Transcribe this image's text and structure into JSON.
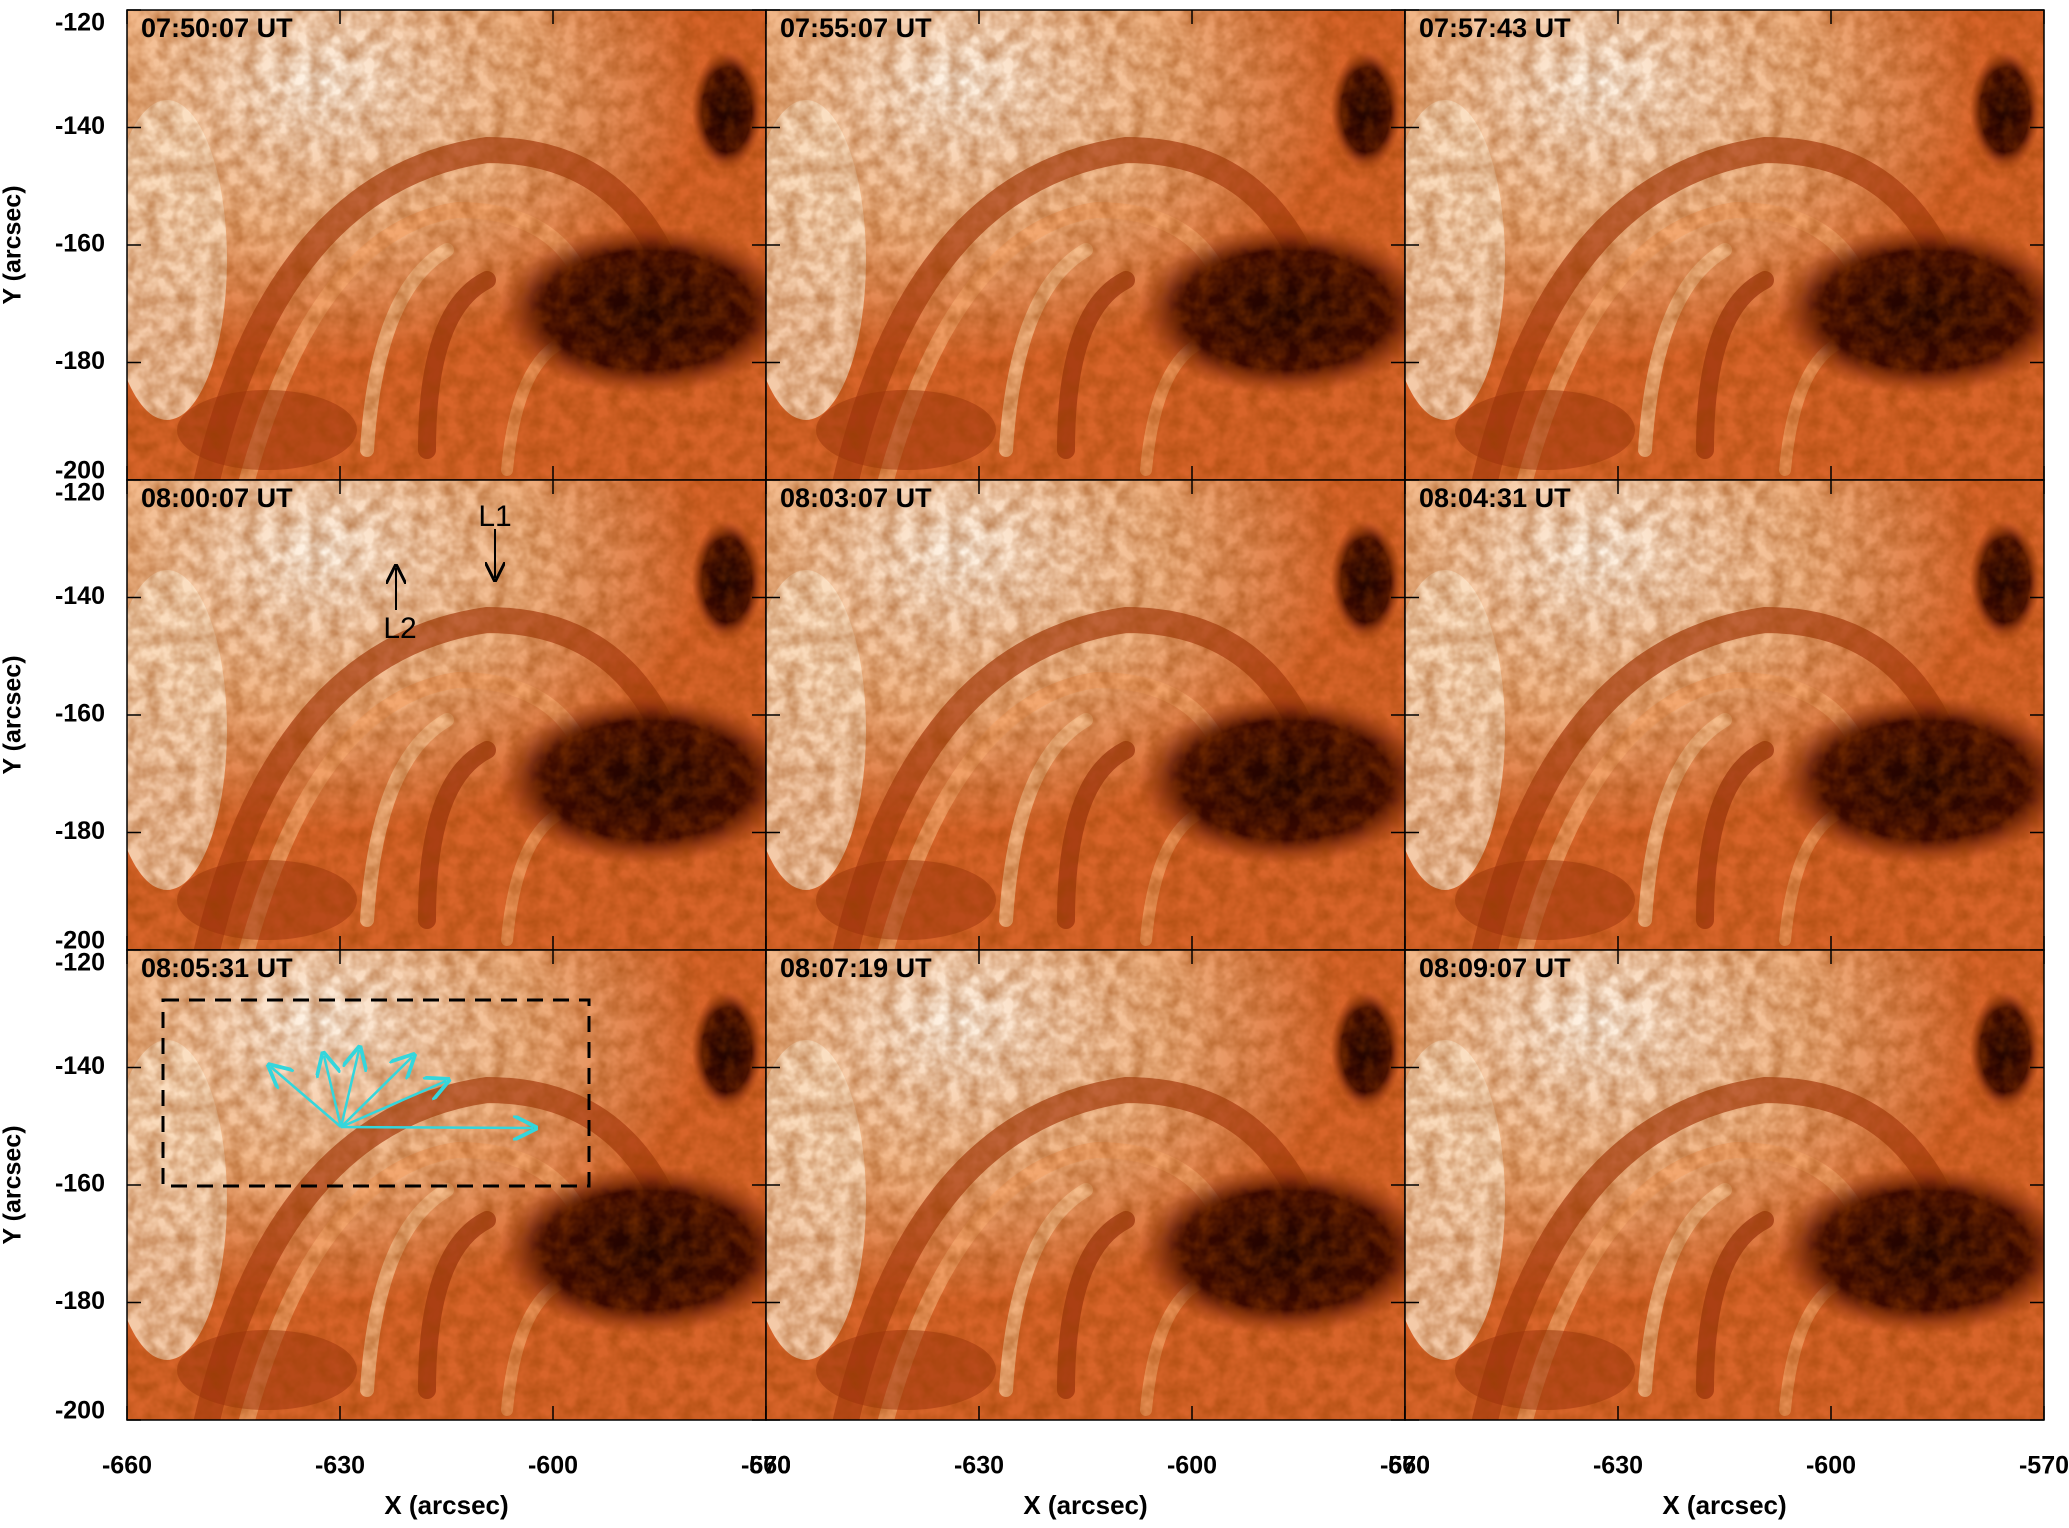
{
  "chart_data": [
    {
      "type": "image",
      "title": "07:50:07 UT",
      "ylabel": "Y (arcsec)",
      "xlim": [
        -660,
        -570
      ],
      "ylim": [
        -200,
        -120
      ],
      "xticks": [
        -660,
        -630,
        -600,
        -570
      ],
      "yticks": [
        -120,
        -140,
        -160,
        -180,
        -200
      ]
    },
    {
      "type": "image",
      "title": "07:55:07 UT",
      "xlim": [
        -660,
        -570
      ],
      "ylim": [
        -200,
        -120
      ],
      "xticks": [
        -660,
        -630,
        -600,
        -570
      ],
      "yticks": [
        -120,
        -140,
        -160,
        -180,
        -200
      ]
    },
    {
      "type": "image",
      "title": "07:57:43 UT",
      "xlim": [
        -660,
        -570
      ],
      "ylim": [
        -200,
        -120
      ],
      "xticks": [
        -660,
        -630,
        -600,
        -570
      ],
      "yticks": [
        -120,
        -140,
        -160,
        -180,
        -200
      ]
    },
    {
      "type": "image",
      "title": "08:00:07 UT",
      "ylabel": "Y (arcsec)",
      "xlim": [
        -660,
        -570
      ],
      "ylim": [
        -200,
        -120
      ],
      "xticks": [
        -660,
        -630,
        -600,
        -570
      ],
      "yticks": [
        -120,
        -140,
        -160,
        -180,
        -200
      ],
      "annotations": [
        "L1",
        "L2"
      ]
    },
    {
      "type": "image",
      "title": "08:03:07 UT",
      "xlim": [
        -660,
        -570
      ],
      "ylim": [
        -200,
        -120
      ],
      "xticks": [
        -660,
        -630,
        -600,
        -570
      ],
      "yticks": [
        -120,
        -140,
        -160,
        -180,
        -200
      ]
    },
    {
      "type": "image",
      "title": "08:04:31 UT",
      "xlim": [
        -660,
        -570
      ],
      "ylim": [
        -200,
        -120
      ],
      "xticks": [
        -660,
        -630,
        -600,
        -570
      ],
      "yticks": [
        -120,
        -140,
        -160,
        -180,
        -200
      ]
    },
    {
      "type": "image",
      "title": "08:05:31 UT",
      "ylabel": "Y (arcsec)",
      "xlabel": "X (arcsec)",
      "xlim": [
        -660,
        -570
      ],
      "ylim": [
        -200,
        -120
      ],
      "xticks": [
        -660,
        -630,
        -600,
        -570
      ],
      "yticks": [
        -120,
        -140,
        -160,
        -180,
        -200
      ]
    },
    {
      "type": "image",
      "title": "08:07:19 UT",
      "xlabel": "X (arcsec)",
      "xlim": [
        -660,
        -570
      ],
      "ylim": [
        -200,
        -120
      ],
      "xticks": [
        -660,
        -630,
        -600,
        -570
      ],
      "yticks": [
        -120,
        -140,
        -160,
        -180,
        -200
      ]
    },
    {
      "type": "image",
      "title": "08:09:07 UT",
      "xlabel": "X (arcsec)",
      "xlim": [
        -660,
        -570
      ],
      "ylim": [
        -200,
        -120
      ],
      "xticks": [
        -660,
        -630,
        -600,
        -570
      ],
      "yticks": [
        -120,
        -140,
        -160,
        -180,
        -200
      ]
    }
  ]
}
